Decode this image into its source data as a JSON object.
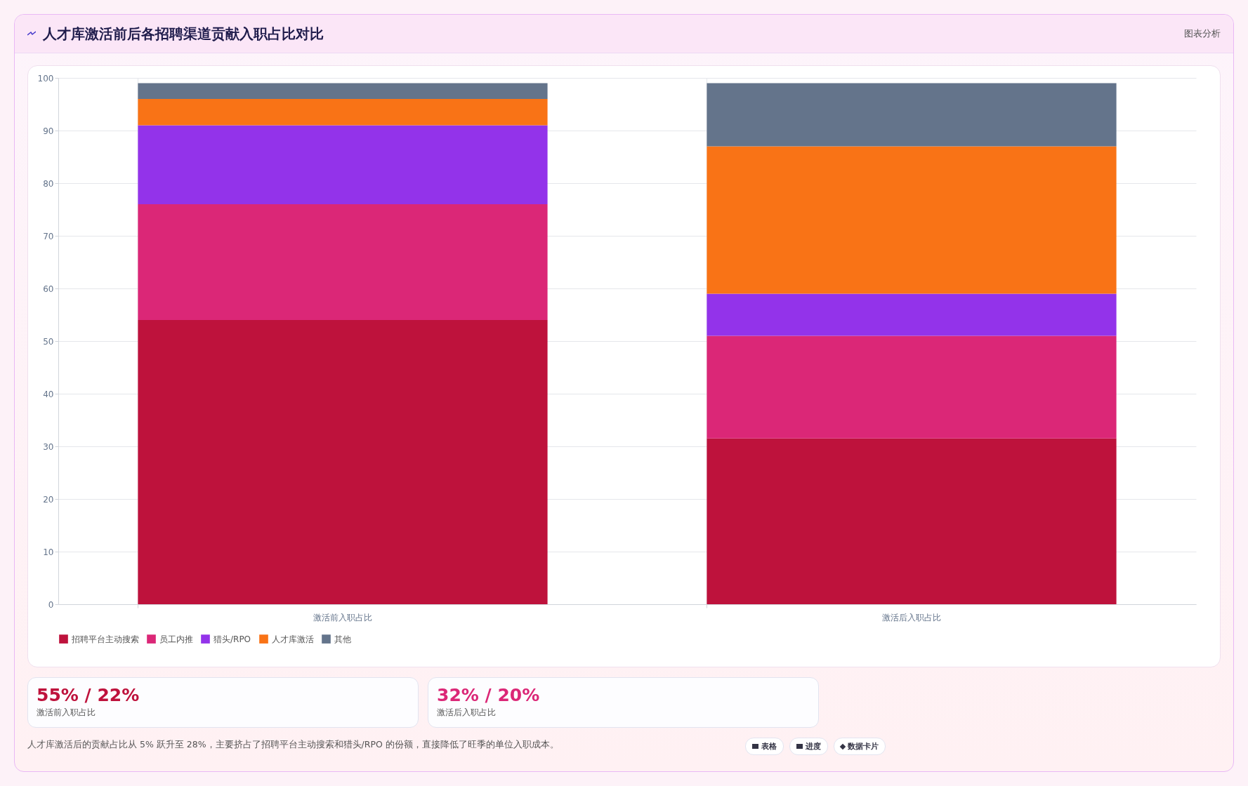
{
  "chart_data": {
    "type": "bar",
    "title": "人才库激活前后各招聘渠道贡献入职占比对比",
    "categories": [
      "激活前入职占比",
      "激活后入职占比"
    ],
    "stacked": true,
    "series": [
      {
        "name": "招聘平台主动搜索",
        "color": "#be123c",
        "values": [
          54,
          31.5
        ]
      },
      {
        "name": "员工内推",
        "color": "#db2777",
        "values": [
          22,
          19.5
        ]
      },
      {
        "name": "猎头/RPO",
        "color": "#9333ea",
        "values": [
          15,
          8
        ]
      },
      {
        "name": "人才库激活",
        "color": "#f97316",
        "values": [
          5,
          28
        ]
      },
      {
        "name": "其他",
        "color": "#64748b",
        "values": [
          3,
          12
        ]
      }
    ],
    "ylim": [
      0,
      100
    ],
    "yticks": [
      0,
      10,
      20,
      30,
      40,
      50,
      60,
      70,
      80,
      90,
      100
    ],
    "grid": true,
    "legend": "bottom",
    "annotations": [
      "图表分析",
      "55% / 22%",
      "激活前入职占比",
      "32% / 20%",
      "激活后入职占比",
      "人才库激活后的贡献占比从 5% 跃升至 28%，主要挤占了招聘平台主动搜索和猎头/RPO 的份额，直接降低了旺季的单位入职成本。",
      "表格",
      "进度",
      "数据卡片"
    ]
  }
}
